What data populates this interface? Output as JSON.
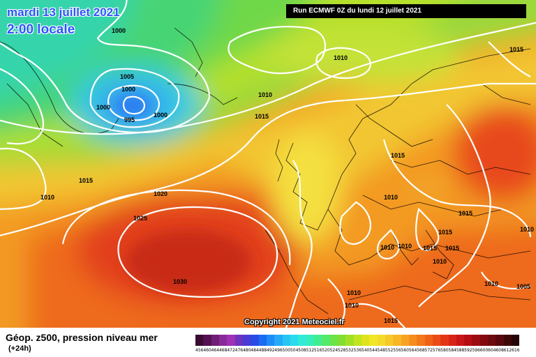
{
  "header": {
    "date": "mardi 13 juillet 2021",
    "time": "2:00 locale",
    "run": "Run ECMWF 0Z du lundi 12 juillet 2021"
  },
  "map": {
    "copyright": "Copyright 2021 Meteociel.fr",
    "pressure_labels": [
      "1000",
      "1010",
      "1005",
      "1000",
      "1000",
      "1000",
      "995",
      "1010",
      "1010",
      "1015",
      "1015",
      "1015",
      "1015",
      "1010",
      "1020",
      "1025",
      "1030",
      "1010",
      "1010",
      "1010",
      "1015",
      "1015",
      "1015",
      "1015",
      "1010",
      "1010",
      "1005",
      "1010",
      "1010",
      "1015"
    ]
  },
  "footer": {
    "caption": "Géop. z500, pression niveau mer",
    "subcaption": "(+24h)"
  },
  "scale": {
    "labels": [
      "456",
      "460",
      "464",
      "468",
      "472",
      "476",
      "480",
      "484",
      "488",
      "492",
      "496",
      "500",
      "504",
      "508",
      "512",
      "516",
      "520",
      "524",
      "528",
      "532",
      "536",
      "540",
      "544",
      "548",
      "552",
      "556",
      "560",
      "564",
      "568",
      "572",
      "576",
      "580",
      "584",
      "588",
      "592",
      "596",
      "600",
      "604",
      "608",
      "612",
      "616"
    ],
    "colors": [
      "#3a0a30",
      "#560f50",
      "#6e1e74",
      "#8a2a9a",
      "#a030b4",
      "#6e32be",
      "#4a3ad6",
      "#2a4ae6",
      "#1a6cf0",
      "#1e8cf6",
      "#24aaf6",
      "#26c6f2",
      "#28dcee",
      "#30ead8",
      "#36eeb8",
      "#40ee90",
      "#52ea68",
      "#6ae448",
      "#84de30",
      "#a2e026",
      "#c0e41e",
      "#dde41c",
      "#f2e626",
      "#f4da2a",
      "#f6c82a",
      "#f8b626",
      "#f8a222",
      "#f68c1e",
      "#f2781a",
      "#ee6218",
      "#ea4c16",
      "#e43616",
      "#d82416",
      "#c81616",
      "#b40e12",
      "#9c0a10",
      "#840a10",
      "#6e0a0e",
      "#58080c",
      "#3e0608",
      "#240404"
    ]
  }
}
